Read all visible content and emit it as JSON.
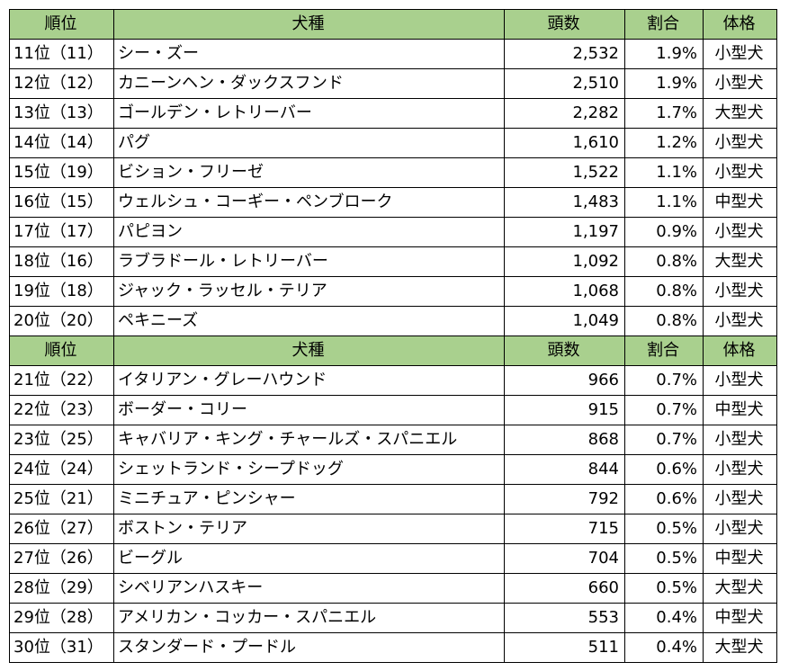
{
  "columns": {
    "rank": "順位",
    "breed": "犬種",
    "count": "頭数",
    "ratio": "割合",
    "size": "体格"
  },
  "group1": [
    {
      "rank": "11位（11）",
      "breed": "シー・ズー",
      "count": "2,532",
      "ratio": "1.9%",
      "size": "小型犬"
    },
    {
      "rank": "12位（12）",
      "breed": "カニーンヘン・ダックスフンド",
      "count": "2,510",
      "ratio": "1.9%",
      "size": "小型犬"
    },
    {
      "rank": "13位（13）",
      "breed": "ゴールデン・レトリーバー",
      "count": "2,282",
      "ratio": "1.7%",
      "size": "大型犬"
    },
    {
      "rank": "14位（14）",
      "breed": "パグ",
      "count": "1,610",
      "ratio": "1.2%",
      "size": "小型犬"
    },
    {
      "rank": "15位（19）",
      "breed": "ビション・フリーゼ",
      "count": "1,522",
      "ratio": "1.1%",
      "size": "小型犬"
    },
    {
      "rank": "16位（15）",
      "breed": "ウェルシュ・コーギー・ペンブローク",
      "count": "1,483",
      "ratio": "1.1%",
      "size": "中型犬"
    },
    {
      "rank": "17位（17）",
      "breed": "パピヨン",
      "count": "1,197",
      "ratio": "0.9%",
      "size": "小型犬"
    },
    {
      "rank": "18位（16）",
      "breed": "ラブラドール・レトリーバー",
      "count": "1,092",
      "ratio": "0.8%",
      "size": "大型犬"
    },
    {
      "rank": "19位（18）",
      "breed": "ジャック・ラッセル・テリア",
      "count": "1,068",
      "ratio": "0.8%",
      "size": "小型犬"
    },
    {
      "rank": "20位（20）",
      "breed": "ペキニーズ",
      "count": "1,049",
      "ratio": "0.8%",
      "size": "小型犬"
    }
  ],
  "group2": [
    {
      "rank": "21位（22）",
      "breed": "イタリアン・グレーハウンド",
      "count": "966",
      "ratio": "0.7%",
      "size": "小型犬"
    },
    {
      "rank": "22位（23）",
      "breed": "ボーダー・コリー",
      "count": "915",
      "ratio": "0.7%",
      "size": "中型犬"
    },
    {
      "rank": "23位（25）",
      "breed": "キャバリア・キング・チャールズ・スパニエル",
      "count": "868",
      "ratio": "0.7%",
      "size": "小型犬"
    },
    {
      "rank": "24位（24）",
      "breed": "シェットランド・シープドッグ",
      "count": "844",
      "ratio": "0.6%",
      "size": "小型犬"
    },
    {
      "rank": "25位（21）",
      "breed": "ミニチュア・ピンシャー",
      "count": "792",
      "ratio": "0.6%",
      "size": "小型犬"
    },
    {
      "rank": "26位（27）",
      "breed": "ボストン・テリア",
      "count": "715",
      "ratio": "0.5%",
      "size": "小型犬"
    },
    {
      "rank": "27位（26）",
      "breed": "ビーグル",
      "count": "704",
      "ratio": "0.5%",
      "size": "中型犬"
    },
    {
      "rank": "28位（29）",
      "breed": "シベリアンハスキー",
      "count": "660",
      "ratio": "0.5%",
      "size": "大型犬"
    },
    {
      "rank": "29位（28）",
      "breed": "アメリカン・コッカー・スパニエル",
      "count": "553",
      "ratio": "0.4%",
      "size": "中型犬"
    },
    {
      "rank": "30位（31）",
      "breed": "スタンダード・プードル",
      "count": "511",
      "ratio": "0.4%",
      "size": "大型犬"
    }
  ],
  "colors": {
    "header_bg": "#a9d08e",
    "border": "#000000"
  }
}
